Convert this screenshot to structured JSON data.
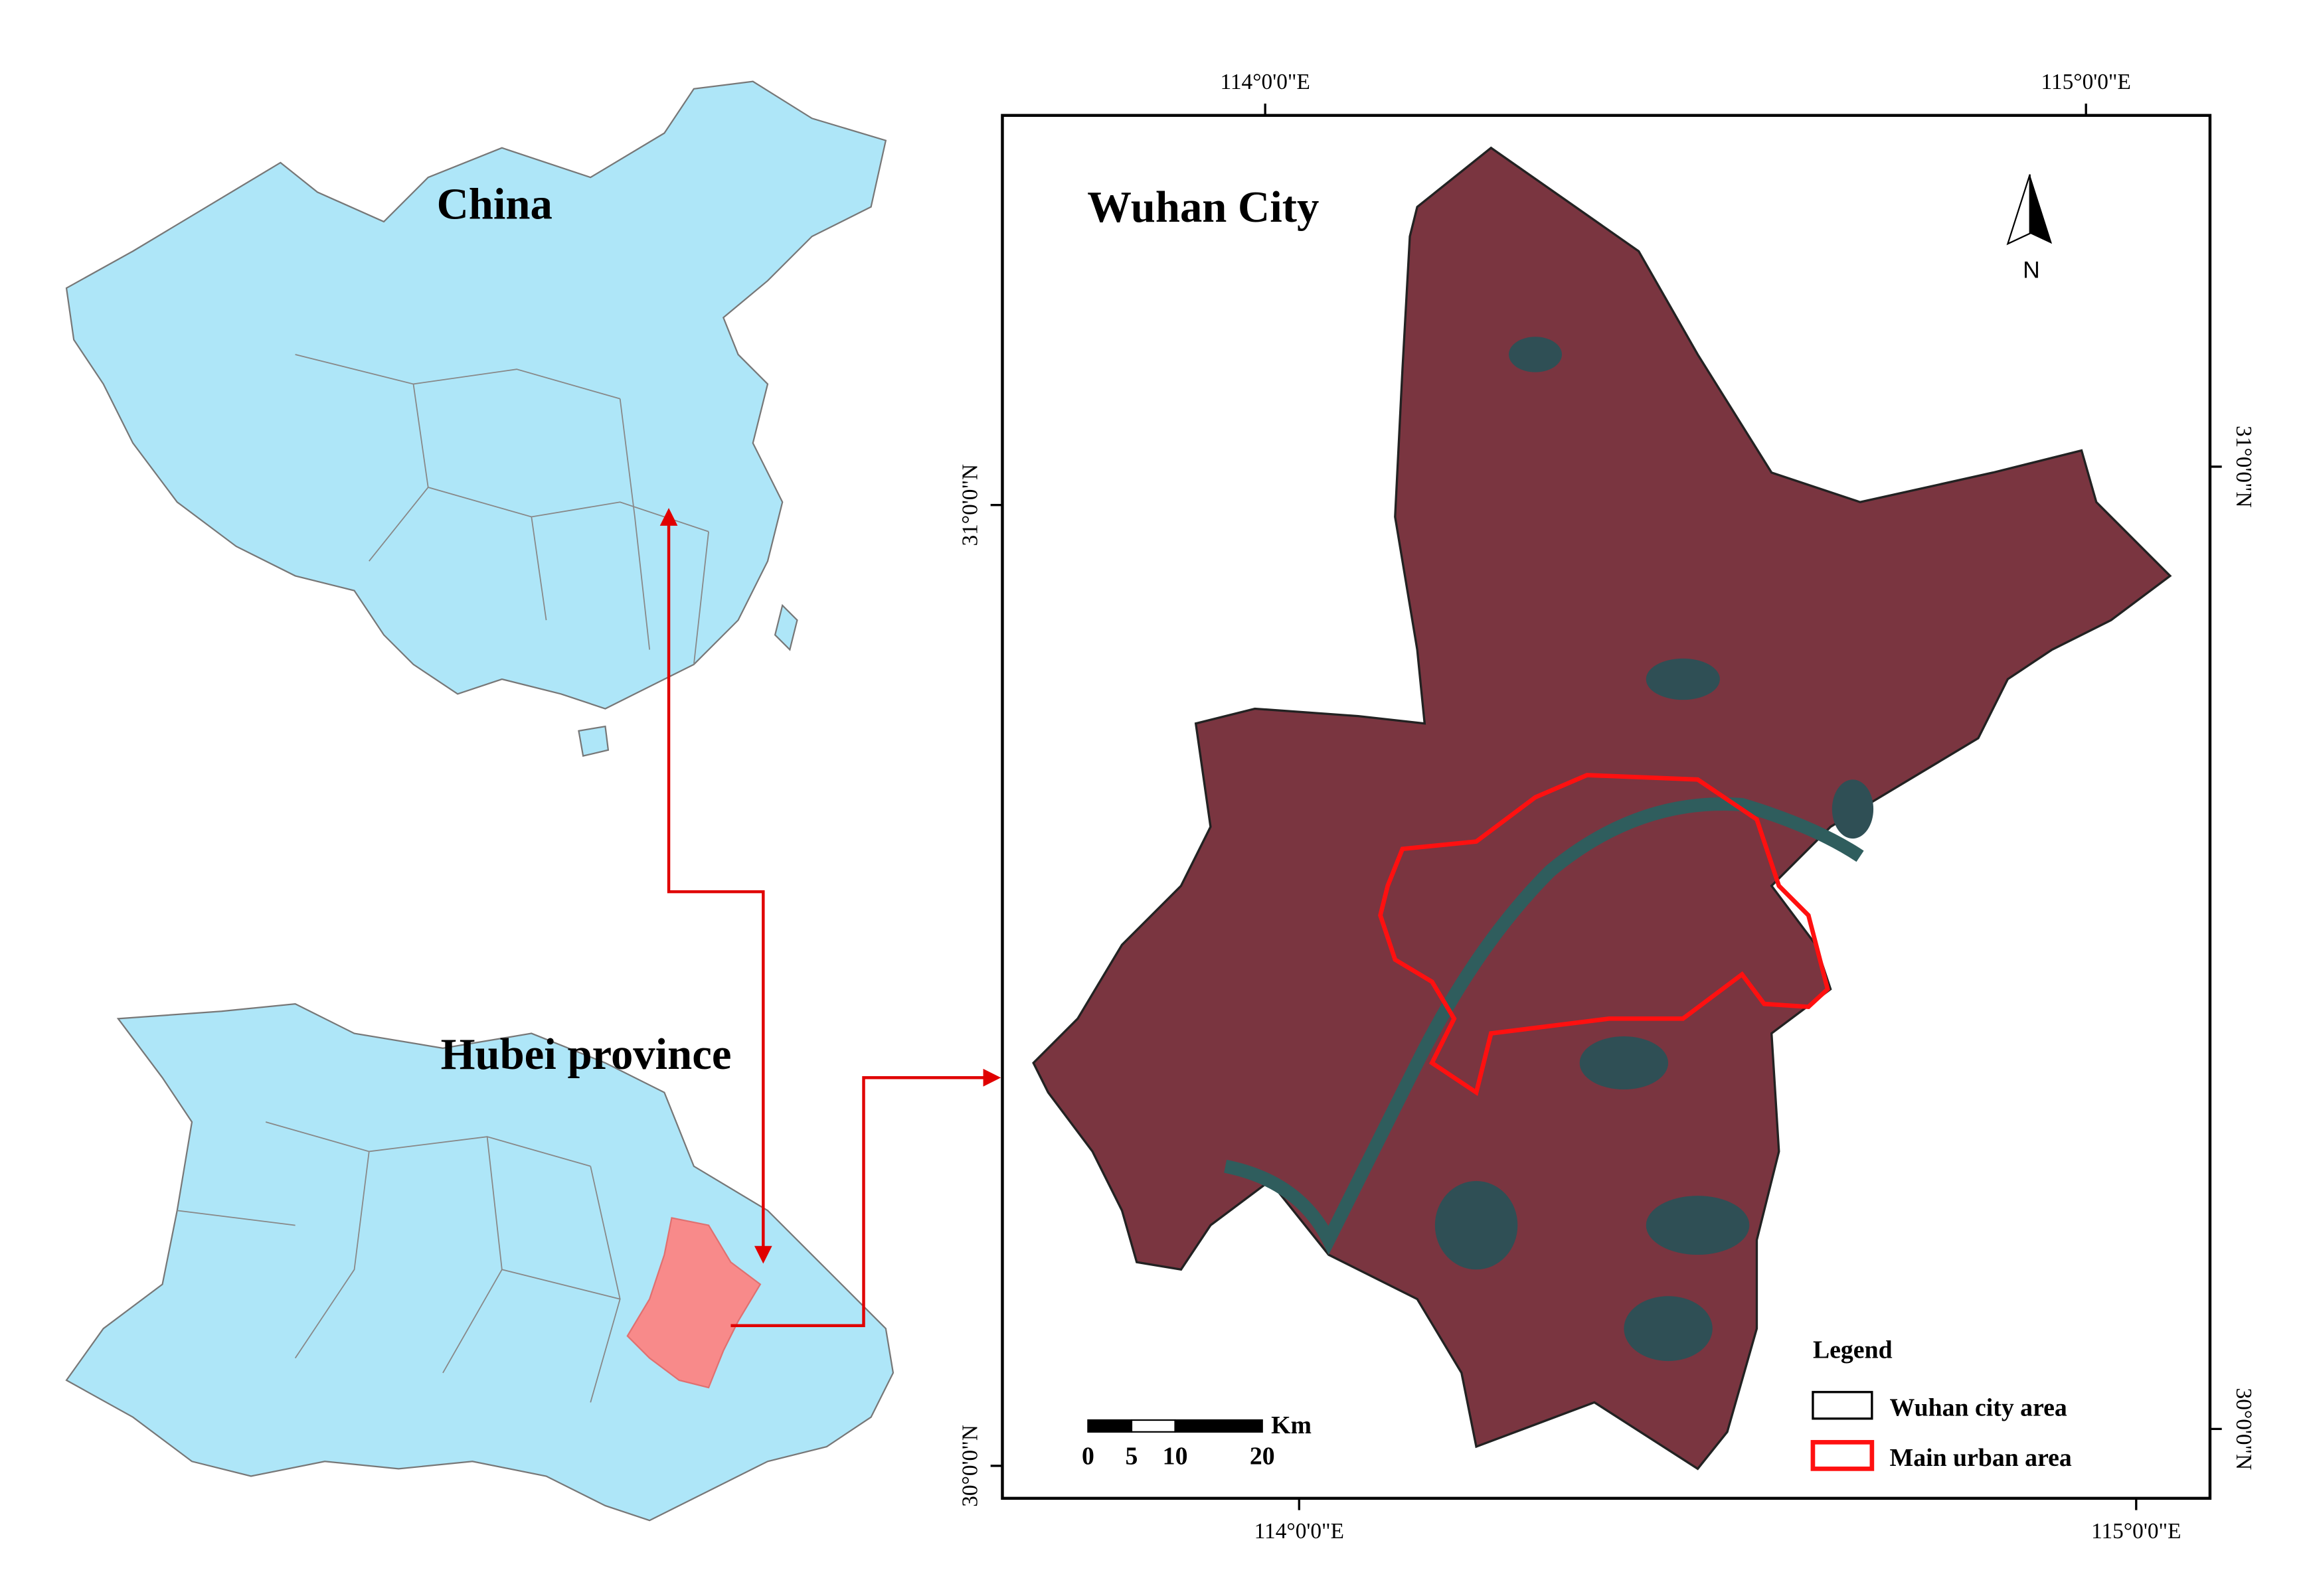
{
  "inset_china": {
    "title": "China"
  },
  "inset_hubei": {
    "title": "Hubei province"
  },
  "main_map": {
    "title": "Wuhan City",
    "top_labels": [
      "114°0'0\"E",
      "115°0'0\"E"
    ],
    "bottom_labels": [
      "114°0'0\"E",
      "115°0'0\"E"
    ],
    "left_labels": [
      "31°0'0\"N",
      "30°0'0\"N"
    ],
    "right_labels": [
      "31°0'0\"N",
      "30°0'0\"N"
    ],
    "north_arrow": "N",
    "scale_bar": {
      "unit": "Km",
      "ticks": [
        0,
        5,
        10,
        20
      ]
    },
    "legend": {
      "title": "Legend",
      "items": [
        "Wuhan city area",
        "Main urban area"
      ]
    }
  }
}
